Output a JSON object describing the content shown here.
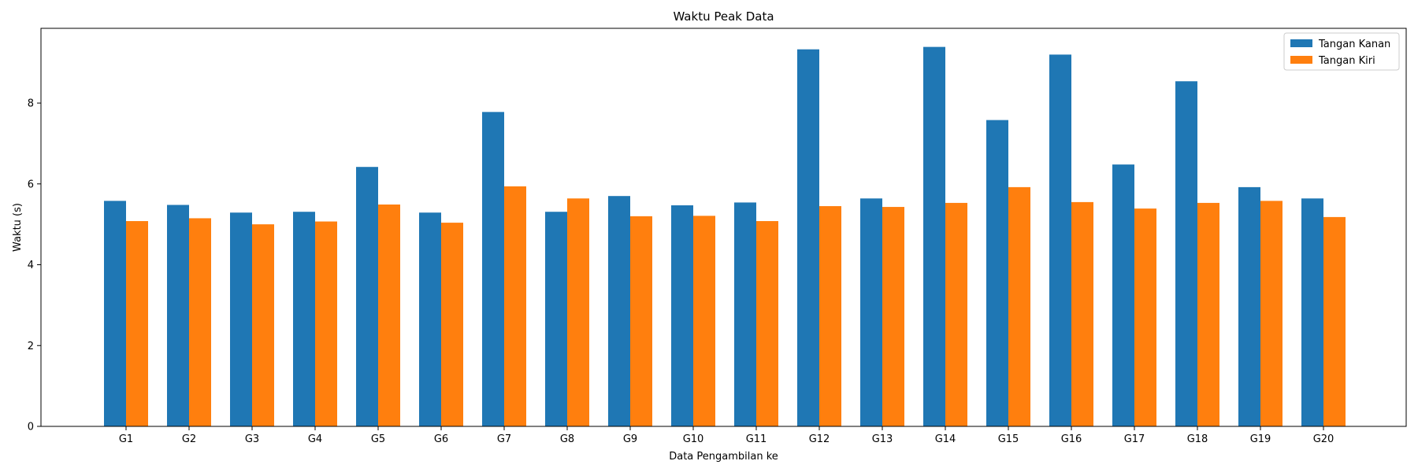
{
  "chart_data": {
    "type": "bar",
    "title": "Waktu Peak Data",
    "xlabel": "Data Pengambilan ke",
    "ylabel": "Waktu (s)",
    "ylim": [
      0,
      9.85
    ],
    "yticks": [
      0,
      2,
      4,
      6,
      8
    ],
    "grid": false,
    "legend_position": "top-right",
    "categories": [
      "G1",
      "G2",
      "G3",
      "G4",
      "G5",
      "G6",
      "G7",
      "G8",
      "G9",
      "G10",
      "G11",
      "G12",
      "G13",
      "G14",
      "G15",
      "G16",
      "G17",
      "G18",
      "G19",
      "G20"
    ],
    "series": [
      {
        "name": "Tangan Kanan",
        "color": "#1f77b4",
        "values": [
          5.58,
          5.48,
          5.29,
          5.31,
          6.42,
          5.29,
          7.78,
          5.31,
          5.7,
          5.47,
          5.54,
          9.33,
          5.64,
          9.39,
          7.58,
          9.2,
          6.48,
          8.54,
          5.92,
          5.64
        ]
      },
      {
        "name": "Tangan Kiri",
        "color": "#ff7f0e",
        "values": [
          5.08,
          5.15,
          5.0,
          5.07,
          5.49,
          5.04,
          5.94,
          5.64,
          5.2,
          5.21,
          5.08,
          5.45,
          5.43,
          5.53,
          5.92,
          5.55,
          5.39,
          5.53,
          5.58,
          5.18
        ]
      }
    ]
  }
}
